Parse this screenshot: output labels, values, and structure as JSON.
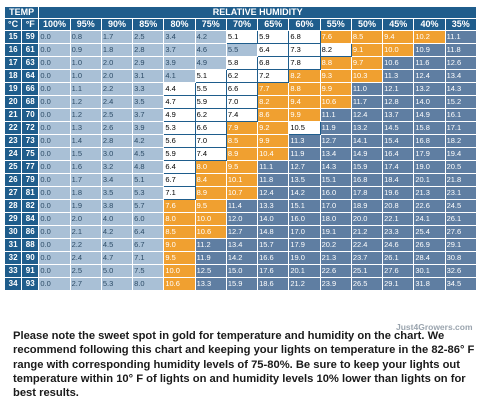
{
  "header": {
    "temp_label": "TEMP",
    "humidity_label": "RELATIVE HUMIDITY",
    "c_label": "°C",
    "f_label": "°F",
    "humidity_levels": [
      "100%",
      "95%",
      "90%",
      "85%",
      "80%",
      "75%",
      "70%",
      "65%",
      "60%",
      "55%",
      "50%",
      "45%",
      "40%",
      "35%"
    ]
  },
  "rows": [
    {
      "c": "15",
      "f": "59",
      "v": [
        "0.0",
        "0.8",
        "1.7",
        "2.5",
        "3.4",
        "4.2",
        "5.1",
        "5.9",
        "6.8",
        "7.6",
        "8.5",
        "9.4",
        "10.2",
        "11.1"
      ]
    },
    {
      "c": "16",
      "f": "61",
      "v": [
        "0.0",
        "0.9",
        "1.8",
        "2.8",
        "3.7",
        "4.6",
        "5.5",
        "6.4",
        "7.3",
        "8.2",
        "9.1",
        "10.0",
        "10.9",
        "11.8"
      ]
    },
    {
      "c": "17",
      "f": "63",
      "v": [
        "0.0",
        "1.0",
        "2.0",
        "2.9",
        "3.9",
        "4.9",
        "5.8",
        "6.8",
        "7.8",
        "8.8",
        "9.7",
        "10.6",
        "11.6",
        "12.6"
      ]
    },
    {
      "c": "18",
      "f": "64",
      "v": [
        "0.0",
        "1.0",
        "2.0",
        "3.1",
        "4.1",
        "5.1",
        "6.2",
        "7.2",
        "8.2",
        "9.3",
        "10.3",
        "11.3",
        "12.4",
        "13.4"
      ]
    },
    {
      "c": "19",
      "f": "66",
      "v": [
        "0.0",
        "1.1",
        "2.2",
        "3.3",
        "4.4",
        "5.5",
        "6.6",
        "7.7",
        "8.8",
        "9.9",
        "11.0",
        "12.1",
        "13.2",
        "14.3"
      ]
    },
    {
      "c": "20",
      "f": "68",
      "v": [
        "0.0",
        "1.2",
        "2.4",
        "3.5",
        "4.7",
        "5.9",
        "7.0",
        "8.2",
        "9.4",
        "10.6",
        "11.7",
        "12.8",
        "14.0",
        "15.2"
      ]
    },
    {
      "c": "21",
      "f": "70",
      "v": [
        "0.0",
        "1.2",
        "2.5",
        "3.7",
        "4.9",
        "6.2",
        "7.4",
        "8.6",
        "9.9",
        "11.1",
        "12.4",
        "13.7",
        "14.9",
        "16.1"
      ]
    },
    {
      "c": "22",
      "f": "72",
      "v": [
        "0.0",
        "1.3",
        "2.6",
        "3.9",
        "5.3",
        "6.6",
        "7.9",
        "9.2",
        "10.5",
        "11.9",
        "13.2",
        "14.5",
        "15.8",
        "17.1"
      ]
    },
    {
      "c": "23",
      "f": "73",
      "v": [
        "0.0",
        "1.4",
        "2.8",
        "4.2",
        "5.6",
        "7.0",
        "8.5",
        "9.9",
        "11.3",
        "12.7",
        "14.1",
        "15.4",
        "16.8",
        "18.2"
      ]
    },
    {
      "c": "24",
      "f": "75",
      "v": [
        "0.0",
        "1.5",
        "3.0",
        "4.5",
        "5.9",
        "7.4",
        "8.9",
        "10.4",
        "11.9",
        "13.4",
        "14.9",
        "16.4",
        "17.9",
        "19.4"
      ]
    },
    {
      "c": "25",
      "f": "77",
      "v": [
        "0.0",
        "1.6",
        "3.2",
        "4.8",
        "6.4",
        "8.0",
        "9.5",
        "11.1",
        "12.7",
        "14.3",
        "15.9",
        "17.4",
        "19.0",
        "20.5"
      ]
    },
    {
      "c": "26",
      "f": "79",
      "v": [
        "0.0",
        "1.7",
        "3.4",
        "5.1",
        "6.7",
        "8.4",
        "10.1",
        "11.8",
        "13.5",
        "15.1",
        "16.8",
        "18.4",
        "20.1",
        "21.8"
      ]
    },
    {
      "c": "27",
      "f": "81",
      "v": [
        "0.0",
        "1.8",
        "3.5",
        "5.3",
        "7.1",
        "8.9",
        "10.7",
        "12.4",
        "14.2",
        "16.0",
        "17.8",
        "19.6",
        "21.3",
        "23.1"
      ]
    },
    {
      "c": "28",
      "f": "82",
      "v": [
        "0.0",
        "1.9",
        "3.8",
        "5.7",
        "7.6",
        "9.5",
        "11.4",
        "13.3",
        "15.1",
        "17.0",
        "18.9",
        "20.8",
        "22.6",
        "24.5"
      ]
    },
    {
      "c": "29",
      "f": "84",
      "v": [
        "0.0",
        "2.0",
        "4.0",
        "6.0",
        "8.0",
        "10.0",
        "12.0",
        "14.0",
        "16.0",
        "18.0",
        "20.0",
        "22.1",
        "24.1",
        "26.1"
      ]
    },
    {
      "c": "30",
      "f": "86",
      "v": [
        "0.0",
        "2.1",
        "4.2",
        "6.4",
        "8.5",
        "10.6",
        "12.7",
        "14.8",
        "17.0",
        "19.1",
        "21.2",
        "23.3",
        "25.4",
        "27.6"
      ]
    },
    {
      "c": "31",
      "f": "88",
      "v": [
        "0.0",
        "2.2",
        "4.5",
        "6.7",
        "9.0",
        "11.2",
        "13.4",
        "15.7",
        "17.9",
        "20.2",
        "22.4",
        "24.6",
        "26.9",
        "29.1"
      ]
    },
    {
      "c": "32",
      "f": "90",
      "v": [
        "0.0",
        "2.4",
        "4.7",
        "7.1",
        "9.5",
        "11.9",
        "14.2",
        "16.6",
        "19.0",
        "21.3",
        "23.7",
        "26.1",
        "28.4",
        "30.8"
      ]
    },
    {
      "c": "33",
      "f": "91",
      "v": [
        "0.0",
        "2.5",
        "5.0",
        "7.5",
        "10.0",
        "12.5",
        "15.0",
        "17.6",
        "20.1",
        "22.6",
        "25.1",
        "27.6",
        "30.1",
        "32.6"
      ]
    },
    {
      "c": "34",
      "f": "93",
      "v": [
        "0.0",
        "2.7",
        "5.3",
        "8.0",
        "10.6",
        "13.3",
        "15.9",
        "18.6",
        "21.2",
        "23.9",
        "26.5",
        "29.1",
        "31.8",
        "34.5"
      ]
    }
  ],
  "zones": {
    "gold": [
      [
        9,
        10,
        11,
        12
      ],
      [
        10,
        11
      ],
      [
        9,
        10
      ],
      [
        8,
        9,
        10
      ],
      [
        7,
        8,
        9
      ],
      [
        7,
        8,
        9
      ],
      [
        7,
        8
      ],
      [
        6,
        7
      ],
      [
        6,
        7
      ],
      [
        6,
        7
      ],
      [
        5,
        6
      ],
      [
        5,
        6
      ],
      [
        5,
        6
      ],
      [
        4,
        5
      ],
      [
        4,
        5
      ],
      [
        4,
        5
      ],
      [
        4
      ],
      [
        4
      ],
      [
        4
      ],
      [
        4
      ]
    ],
    "white_end": [
      9,
      10,
      9,
      8,
      7,
      7,
      7,
      6,
      6,
      6,
      5,
      5,
      5,
      4,
      4,
      4,
      4,
      4,
      4,
      4
    ],
    "dark_start": [
      13,
      12,
      11,
      11,
      10,
      10,
      9,
      9,
      8,
      8,
      7,
      7,
      7,
      6,
      6,
      6,
      5,
      5,
      5,
      5
    ]
  },
  "watermark": "Just4Growers.com",
  "note": "Please note the sweet spot in gold for temperature and humidity on the chart. We recommend following this chart and keeping your lights on temperature  in the 82-86° F range with corresponding  humidity levels of 75-80%. Be sure to keep your lights out temperature within 10° F of lights on and humidity levels 10% lower than lights on for best results.",
  "colors": {
    "header": "#1f5d8c",
    "gold": "#f0a030",
    "pale": "#a9c0d6",
    "dark": "#5f7ea2"
  }
}
